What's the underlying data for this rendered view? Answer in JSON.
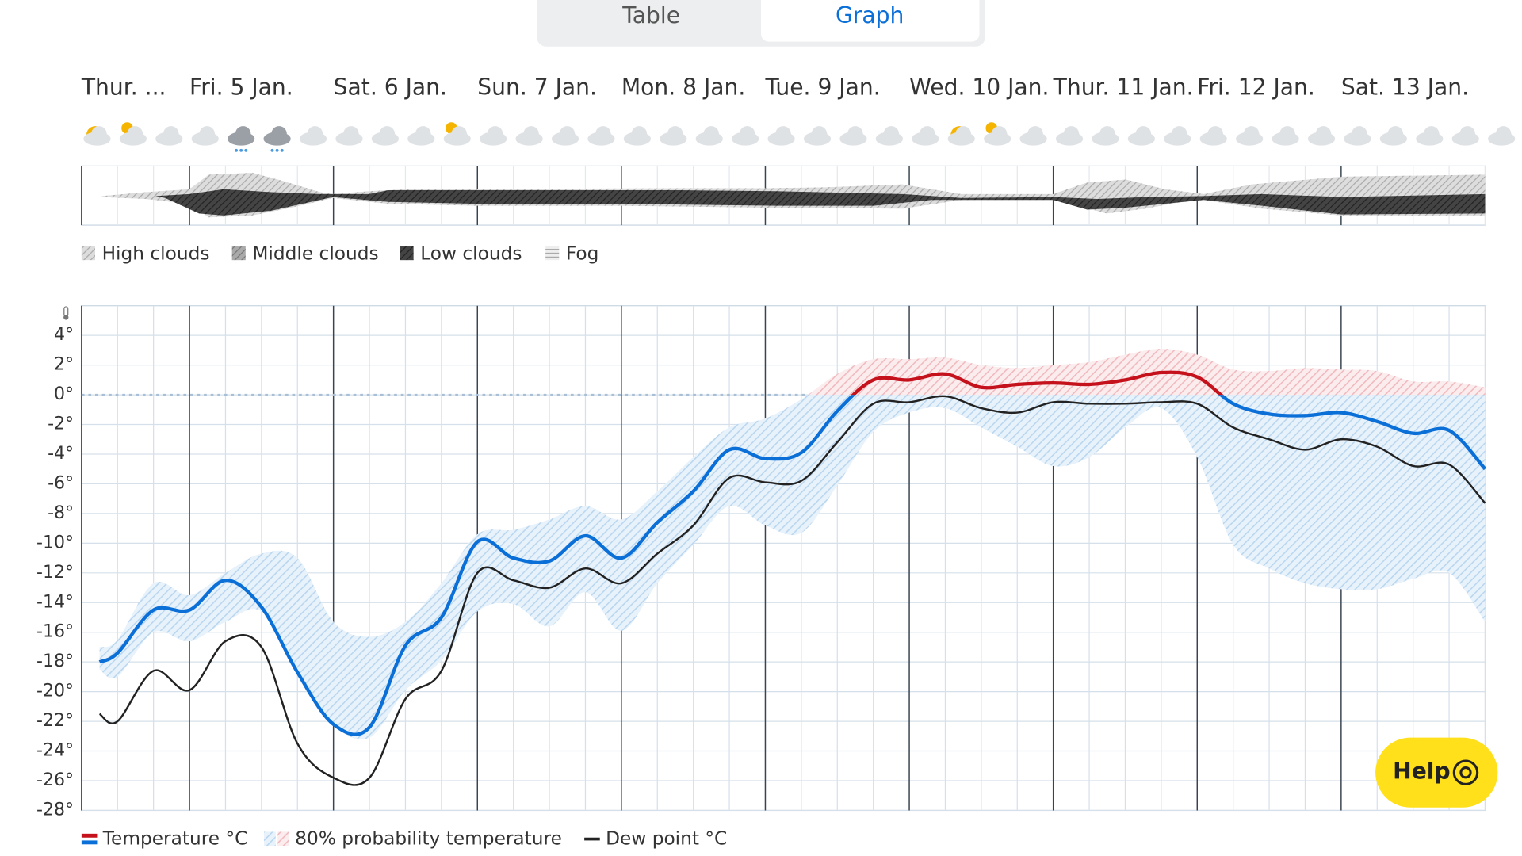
{
  "tabs": [
    "Table",
    "Graph"
  ],
  "cloud_legend": [
    "High clouds",
    "Middle clouds",
    "Low clouds",
    "Fog"
  ],
  "help": "Help",
  "chart_data": {
    "type": "line",
    "x": [
      9,
      12,
      18,
      24,
      30,
      36,
      42,
      48,
      54,
      60,
      66,
      72,
      78,
      84,
      90,
      96,
      102,
      108,
      114,
      120,
      126,
      132,
      138,
      144,
      150,
      156,
      162,
      168,
      174,
      180,
      186,
      192,
      198,
      204,
      210,
      216,
      222,
      228,
      234,
      240
    ],
    "xlim": [
      6,
      240
    ],
    "xticks": [
      {
        "value": 6,
        "label": "Thur. ..."
      },
      {
        "value": 24,
        "label": "Fri. 5 Jan."
      },
      {
        "value": 48,
        "label": "Sat. 6 Jan."
      },
      {
        "value": 72,
        "label": "Sun. 7 Jan."
      },
      {
        "value": 96,
        "label": "Mon. 8 Jan."
      },
      {
        "value": 120,
        "label": "Tue. 9 Jan."
      },
      {
        "value": 144,
        "label": "Wed. 10 Jan."
      },
      {
        "value": 168,
        "label": "Thur. 11 Jan."
      },
      {
        "value": 192,
        "label": "Fri. 12 Jan."
      },
      {
        "value": 216,
        "label": "Sat. 13 Jan."
      }
    ],
    "ylim": [
      -28,
      6
    ],
    "yticks": [
      {
        "value": 4,
        "label": "4°"
      },
      {
        "value": 2,
        "label": "2°"
      },
      {
        "value": 0,
        "label": "0°"
      },
      {
        "value": -2,
        "label": "-2°"
      },
      {
        "value": -4,
        "label": "-4°"
      },
      {
        "value": -6,
        "label": "-6°"
      },
      {
        "value": -8,
        "label": "-8°"
      },
      {
        "value": -10,
        "label": "-10°"
      },
      {
        "value": -12,
        "label": "-12°"
      },
      {
        "value": -14,
        "label": "-14°"
      },
      {
        "value": -16,
        "label": "-16°"
      },
      {
        "value": -18,
        "label": "-18°"
      },
      {
        "value": -20,
        "label": "-20°"
      },
      {
        "value": -22,
        "label": "-22°"
      },
      {
        "value": -24,
        "label": "-24°"
      },
      {
        "value": -26,
        "label": "-26°"
      },
      {
        "value": -28,
        "label": "-28°"
      }
    ],
    "grid": true,
    "series": [
      {
        "name": "Temperature °C",
        "color": "#0b6fd8",
        "color_above_zero": "#c4111b",
        "values": [
          -18.0,
          -17.4,
          -14.5,
          -14.5,
          -12.5,
          -14.3,
          -18.7,
          -22.2,
          -22.4,
          -16.9,
          -15.0,
          -9.9,
          -11.0,
          -11.2,
          -9.5,
          -11.0,
          -8.6,
          -6.5,
          -3.7,
          -4.3,
          -3.9,
          -1.1,
          1.0,
          1.0,
          1.4,
          0.5,
          0.7,
          0.8,
          0.7,
          1.0,
          1.5,
          1.2,
          -0.6,
          -1.3,
          -1.4,
          -1.2,
          -1.8,
          -2.6,
          -2.4,
          -5.0
        ]
      },
      {
        "name": "80% probability temperature",
        "color": "#b9d6ef",
        "color_above_zero": "#f0b9bd",
        "high": [
          -17,
          -16.5,
          -12.7,
          -13.5,
          -12.0,
          -10.7,
          -11.0,
          -15.3,
          -16.3,
          -15.3,
          -12.7,
          -9.4,
          -9.1,
          -8.4,
          -7.5,
          -8.4,
          -6.5,
          -4.2,
          -2.2,
          -1.6,
          -0.3,
          1.4,
          2.4,
          2.4,
          2.5,
          2.0,
          1.8,
          2.0,
          2.2,
          2.7,
          3.1,
          2.7,
          1.7,
          1.6,
          1.8,
          1.7,
          1.6,
          0.9,
          0.9,
          0.5
        ],
        "low": [
          -18.5,
          -19,
          -16,
          -16.6,
          -15.3,
          -14.6,
          -18.6,
          -22.2,
          -23.1,
          -19.9,
          -17.9,
          -14.6,
          -14.1,
          -15.6,
          -13.3,
          -15.9,
          -12.7,
          -10.1,
          -7.5,
          -8.8,
          -9.3,
          -6.1,
          -2.5,
          -1.2,
          -0.9,
          -2.2,
          -3.5,
          -4.8,
          -4.2,
          -2.2,
          -0.9,
          -4.2,
          -10.1,
          -11.7,
          -12.7,
          -13.1,
          -13.1,
          -12.4,
          -12.0,
          -15.3
        ]
      },
      {
        "name": "Dew point °C",
        "color": "#222222",
        "values": [
          -21.5,
          -22.0,
          -18.6,
          -19.9,
          -16.6,
          -17.0,
          -23.5,
          -25.8,
          -25.8,
          -20.5,
          -18.6,
          -12.0,
          -12.5,
          -13.0,
          -11.7,
          -12.7,
          -10.7,
          -8.8,
          -5.6,
          -5.9,
          -5.8,
          -3.2,
          -0.6,
          -0.5,
          -0.1,
          -0.9,
          -1.2,
          -0.5,
          -0.6,
          -0.6,
          -0.5,
          -0.6,
          -2.2,
          -3.0,
          -3.7,
          -3.0,
          -3.5,
          -4.8,
          -4.7,
          -7.3
        ]
      }
    ]
  }
}
